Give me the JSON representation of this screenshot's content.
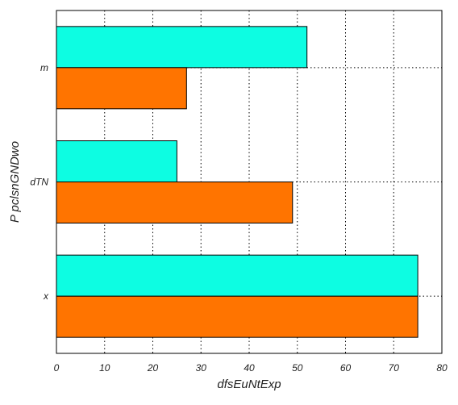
{
  "chart_data": {
    "type": "bar",
    "orientation": "horizontal",
    "categories": [
      "m",
      "dTN",
      "x"
    ],
    "series": [
      {
        "values": [
          52,
          25,
          75
        ],
        "color": "#0dfde2"
      },
      {
        "values": [
          27,
          49,
          75
        ],
        "color": "#ff7400"
      }
    ],
    "xlabel": "dfsEuNtExp",
    "ylabel": "P pclsnGNDwo",
    "xlim": [
      0,
      80
    ],
    "xticks": [
      0,
      10,
      20,
      30,
      40,
      50,
      60,
      70,
      80
    ],
    "grid": true,
    "grid_style": "dotted",
    "legend": "none"
  }
}
